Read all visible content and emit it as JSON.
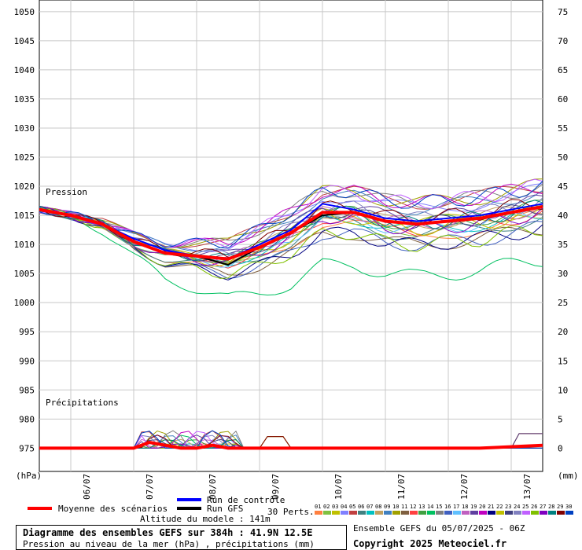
{
  "chart_data": {
    "type": "line",
    "title": "Diagramme des ensembles GEFS sur 384h : 41.9N 12.5E",
    "subtitle": "Pression au niveau de la mer (hPa) , précipitations (mm)",
    "left_unit": "(hPa)",
    "right_unit": "(mm)",
    "pressure_label": "Pression",
    "precip_label": "Précipitations",
    "ylim_left": [
      971,
      1052
    ],
    "left_ticks": [
      975,
      980,
      985,
      990,
      995,
      1000,
      1005,
      1010,
      1015,
      1020,
      1025,
      1030,
      1035,
      1040,
      1045,
      1050
    ],
    "ylim_right": [
      -4,
      77
    ],
    "right_ticks": [
      0,
      5,
      10,
      15,
      20,
      25,
      30,
      35,
      40,
      45,
      50,
      55,
      60,
      65,
      70,
      75
    ],
    "x_range_days": [
      0,
      16
    ],
    "x_ticks": [
      {
        "label": "06/07",
        "day": 1.5
      },
      {
        "label": "07/07",
        "day": 3.5
      },
      {
        "label": "08/07",
        "day": 5.5
      },
      {
        "label": "09/07",
        "day": 7.5
      },
      {
        "label": "10/07",
        "day": 9.5
      },
      {
        "label": "11/07",
        "day": 11.5
      },
      {
        "label": "12/07",
        "day": 13.5
      },
      {
        "label": "13/07",
        "day": 15.5
      }
    ],
    "series": [
      {
        "name": "Moyenne des scénarios",
        "color": "#ff0000",
        "x": [
          0,
          1,
          2,
          3,
          4,
          5,
          6,
          7,
          8,
          9,
          10,
          11,
          12,
          13,
          14,
          15,
          16
        ],
        "y": [
          1016,
          1015,
          1013.5,
          1010.5,
          1008.5,
          1008,
          1007.5,
          1009.5,
          1012,
          1015.5,
          1015.5,
          1014,
          1013.5,
          1014,
          1014.5,
          1015.5,
          1016.5
        ]
      },
      {
        "name": "Run de contrôle",
        "color": "#0000ff",
        "x": [
          0,
          1,
          2,
          3,
          4,
          5,
          6,
          7,
          8,
          9,
          10,
          11,
          12,
          13,
          14,
          15,
          16
        ],
        "y": [
          1016,
          1015,
          1013.5,
          1011,
          1009,
          1008,
          1007.5,
          1010,
          1012.5,
          1017,
          1016,
          1014.5,
          1014,
          1014.5,
          1015,
          1016,
          1017
        ]
      },
      {
        "name": "Run GFS",
        "color": "#000000",
        "x": [
          0,
          1,
          2,
          3,
          4,
          5,
          6,
          7,
          8,
          9,
          10,
          11,
          12,
          13,
          14,
          15,
          16
        ],
        "y": [
          1016,
          1015,
          1013.5,
          1010.5,
          1008.5,
          1008,
          1006.5,
          1009.5,
          1012,
          1015,
          1015.5,
          1014,
          1013.5,
          1014,
          1014.5,
          1015.5,
          1016.5
        ]
      },
      {
        "name": "Précipitations moyenne",
        "color": "#ff0000",
        "x": [
          0,
          2,
          3,
          3.5,
          4,
          4.5,
          5,
          5.5,
          6,
          7,
          8,
          10,
          12,
          14,
          16
        ],
        "y": [
          0,
          0,
          0,
          1,
          0.5,
          0,
          0,
          0.5,
          0,
          0,
          0,
          0,
          0,
          0,
          0.5
        ]
      }
    ]
  },
  "legend": {
    "mean": "Moyenne des scénarios",
    "mean_color": "#ff0000",
    "control": "Run de contrôle",
    "control_color": "#0000ff",
    "gfs": "Run GFS",
    "gfs_color": "#000000",
    "perts": "30 Perts.",
    "altitude": "Altitude du modele : 141m",
    "pert_numbers": [
      "01",
      "02",
      "03",
      "04",
      "05",
      "06",
      "07",
      "08",
      "09",
      "10",
      "11",
      "12",
      "13",
      "14",
      "15",
      "16",
      "17",
      "18",
      "19",
      "20",
      "21",
      "22",
      "23",
      "24",
      "25",
      "26",
      "27",
      "28",
      "29",
      "30"
    ],
    "pert_colors": [
      "#ff8040",
      "#80c040",
      "#c0c000",
      "#8080ff",
      "#c04040",
      "#408080",
      "#00c0c0",
      "#c0a060",
      "#4080c0",
      "#a0a000",
      "#806040",
      "#ff4040",
      "#40a040",
      "#00c060",
      "#808080",
      "#4060c0",
      "#60c0ff",
      "#c060c0",
      "#6040a0",
      "#c000c0",
      "#000080",
      "#c0c000",
      "#404080",
      "#8080c0",
      "#c060ff",
      "#80c000",
      "#8000c0",
      "#008080",
      "#800000",
      "#0040c0"
    ]
  },
  "footer": {
    "title": "Diagramme des ensembles GEFS sur 384h : 41.9N 12.5E",
    "subtitle": "Pression au niveau de la mer (hPa) , précipitations (mm)",
    "run": "Ensemble GEFS du 05/07/2025 - 06Z",
    "copyright": "Copyright 2025 Meteociel.fr"
  }
}
